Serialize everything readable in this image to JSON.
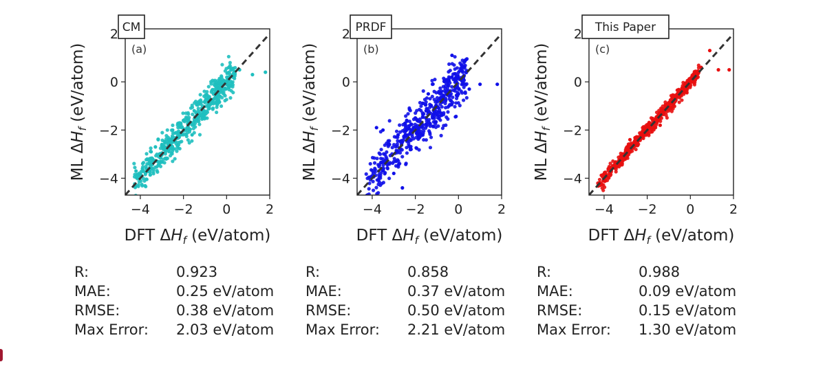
{
  "chart_data": [
    {
      "type": "scatter",
      "badge": "CM",
      "panel_label": "(a)",
      "color": "#1fbfbf",
      "xlabel": "DFT ΔH_f (eV/atom)",
      "ylabel": "ML ΔH_f (eV/atom)",
      "xlim": [
        -4.7,
        2.0
      ],
      "ylim": [
        -4.7,
        2.2
      ],
      "xticks": [
        -4,
        -2,
        0,
        2
      ],
      "yticks": [
        -4,
        -2,
        0,
        2
      ],
      "xtick_labels": [
        "−4",
        "−2",
        "0",
        "2"
      ],
      "ytick_labels": [
        "−4",
        "−2",
        "0",
        "2"
      ],
      "diagonal": "y = x (dashed)",
      "scatter_std": 0.33,
      "series": [
        {
          "values": [
            [
              -4.2,
              -3.7
            ],
            [
              -3.9,
              -3.6
            ],
            [
              -3.6,
              -3.4
            ],
            [
              -3.3,
              -2.7
            ],
            [
              -3.0,
              -2.6
            ],
            [
              -2.7,
              -2.8
            ],
            [
              -2.5,
              -2.0
            ],
            [
              -2.2,
              -2.3
            ],
            [
              -2.0,
              -1.6
            ],
            [
              -1.8,
              -1.9
            ],
            [
              -1.5,
              -1.2
            ],
            [
              -1.2,
              -1.4
            ],
            [
              -1.0,
              -0.8
            ],
            [
              -0.8,
              -1.1
            ],
            [
              -0.5,
              -0.4
            ],
            [
              -0.3,
              -0.6
            ],
            [
              0.0,
              -0.1
            ],
            [
              0.3,
              0.2
            ],
            [
              0.6,
              0.5
            ],
            [
              1.2,
              0.3
            ],
            [
              1.8,
              0.4
            ],
            [
              -3.5,
              -2.9
            ],
            [
              -2.8,
              -3.2
            ],
            [
              -1.6,
              -2.2
            ]
          ]
        }
      ],
      "stats": {
        "r_label": "R:",
        "r": "0.923",
        "mae_label": "MAE:",
        "mae": "0.25 eV/atom",
        "rmse_label": "RMSE:",
        "rmse": "0.38 eV/atom",
        "max_label": "Max Error:",
        "max": "2.03 eV/atom"
      }
    },
    {
      "type": "scatter",
      "badge": "PRDF",
      "panel_label": "(b)",
      "color": "#1010e8",
      "xlabel": "DFT ΔH_f (eV/atom)",
      "ylabel": "ML ΔH_f (eV/atom)",
      "xlim": [
        -4.7,
        2.0
      ],
      "ylim": [
        -4.7,
        2.2
      ],
      "xticks": [
        -4,
        -2,
        0,
        2
      ],
      "yticks": [
        -4,
        -2,
        0,
        2
      ],
      "xtick_labels": [
        "−4",
        "−2",
        "0",
        "2"
      ],
      "ytick_labels": [
        "−4",
        "−2",
        "0",
        "2"
      ],
      "diagonal": "y = x (dashed)",
      "scatter_std": 0.5,
      "series": [
        {
          "values": [
            [
              -3.5,
              -2.0
            ],
            [
              -3.2,
              -2.6
            ],
            [
              -3.0,
              -3.8
            ],
            [
              -2.8,
              -2.2
            ],
            [
              -2.6,
              -4.4
            ],
            [
              -2.4,
              -1.6
            ],
            [
              -2.2,
              -2.8
            ],
            [
              -2.0,
              -1.5
            ],
            [
              -1.8,
              -2.3
            ],
            [
              -1.5,
              -1.2
            ],
            [
              -1.2,
              -1.5
            ],
            [
              -1.0,
              -0.8
            ],
            [
              -0.8,
              -1.3
            ],
            [
              -0.5,
              -0.4
            ],
            [
              -0.3,
              0.2
            ],
            [
              0.0,
              -0.5
            ],
            [
              0.2,
              0.6
            ],
            [
              0.5,
              -0.3
            ],
            [
              1.0,
              -0.1
            ],
            [
              1.8,
              -0.1
            ],
            [
              -0.3,
              1.1
            ],
            [
              -3.8,
              -1.9
            ],
            [
              -2.9,
              -3.3
            ],
            [
              -1.4,
              -0.5
            ]
          ]
        }
      ],
      "stats": {
        "r_label": "R:",
        "r": "0.858",
        "mae_label": "MAE:",
        "mae": "0.37 eV/atom",
        "rmse_label": "RMSE:",
        "rmse": "0.50 eV/atom",
        "max_label": "Max Error:",
        "max": "2.21 eV/atom"
      }
    },
    {
      "type": "scatter",
      "badge": "This Paper",
      "panel_label": "(c)",
      "color": "#e81010",
      "xlabel": "DFT ΔH_f (eV/atom)",
      "ylabel": "ML ΔH_f (eV/atom)",
      "xlim": [
        -4.7,
        2.0
      ],
      "ylim": [
        -4.7,
        2.2
      ],
      "xticks": [
        -4,
        -2,
        0,
        2
      ],
      "yticks": [
        -4,
        -2,
        0,
        2
      ],
      "xtick_labels": [
        "−4",
        "−2",
        "0",
        "2"
      ],
      "ytick_labels": [
        "−4",
        "−2",
        "0",
        "2"
      ],
      "diagonal": "y = x (dashed)",
      "scatter_std": 0.14,
      "series": [
        {
          "values": [
            [
              -4.1,
              -3.9
            ],
            [
              -3.8,
              -3.6
            ],
            [
              -3.5,
              -3.4
            ],
            [
              -3.2,
              -3.1
            ],
            [
              -3.0,
              -2.9
            ],
            [
              -2.7,
              -2.6
            ],
            [
              -2.5,
              -2.5
            ],
            [
              -2.2,
              -2.1
            ],
            [
              -2.0,
              -2.0
            ],
            [
              -1.7,
              -1.6
            ],
            [
              -1.5,
              -1.4
            ],
            [
              -1.2,
              -1.2
            ],
            [
              -1.0,
              -0.9
            ],
            [
              -0.7,
              -0.7
            ],
            [
              -0.5,
              -0.4
            ],
            [
              -0.2,
              -0.2
            ],
            [
              0.0,
              0.1
            ],
            [
              0.3,
              0.3
            ],
            [
              0.5,
              0.6
            ],
            [
              0.9,
              1.3
            ],
            [
              1.3,
              0.5
            ],
            [
              1.8,
              0.5
            ],
            [
              -2.8,
              -2.4
            ],
            [
              -1.4,
              -1.8
            ]
          ]
        }
      ],
      "stats": {
        "r_label": "R:",
        "r": "0.988",
        "mae_label": "MAE:",
        "mae": "0.09 eV/atom",
        "rmse_label": "RMSE:",
        "rmse": "0.15 eV/atom",
        "max_label": "Max Error:",
        "max": "1.30 eV/atom"
      }
    }
  ]
}
